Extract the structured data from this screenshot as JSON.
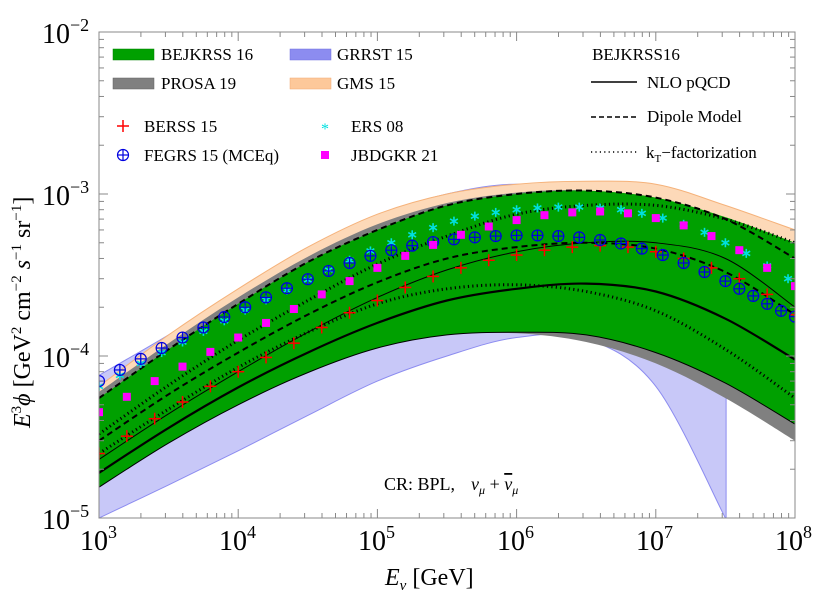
{
  "chart_data": {
    "type": "line",
    "title": "",
    "xlabel": "E_ν [GeV]",
    "ylabel": "E^3 φ [GeV^2 cm^-2 s^-1 sr^-1]",
    "xscale": "log",
    "yscale": "log",
    "xlim": [
      1000,
      100000000
    ],
    "ylim": [
      1e-05,
      0.01
    ],
    "x_ticks": [
      {
        "base": "10",
        "exp": "3"
      },
      {
        "base": "10",
        "exp": "4"
      },
      {
        "base": "10",
        "exp": "5"
      },
      {
        "base": "10",
        "exp": "6"
      },
      {
        "base": "10",
        "exp": "7"
      },
      {
        "base": "10",
        "exp": "8"
      }
    ],
    "y_ticks": [
      {
        "base": "10",
        "exp": "−5"
      },
      {
        "base": "10",
        "exp": "−4"
      },
      {
        "base": "10",
        "exp": "−3"
      },
      {
        "base": "10",
        "exp": "−2"
      }
    ],
    "annotation": {
      "text": "CR: BPL,",
      "formula": "ν_μ + ν̄_μ"
    },
    "legend": {
      "bands": [
        {
          "label": "BEJKRSS 16",
          "color": "#00a000"
        },
        {
          "label": "GRRST 15",
          "color": "#8c8cf0"
        },
        {
          "label": "PROSA 19",
          "color": "#808080"
        },
        {
          "label": "GMS 15",
          "color": "#fdc89a"
        }
      ],
      "markers": [
        {
          "label": "BERSS 15",
          "symbol": "+",
          "color": "#ff0000"
        },
        {
          "label": "ERS 08",
          "symbol": "*",
          "color": "#00ffff"
        },
        {
          "label": "FEGRS 15 (MCEq)",
          "symbol": "⊕",
          "color": "#0000e0"
        },
        {
          "label": "JBDGKR 21",
          "symbol": "■",
          "color": "#ff00ff"
        }
      ],
      "lines_title": "BEJKRSS16",
      "lines": [
        {
          "label": "NLO pQCD",
          "style": "solid"
        },
        {
          "label": "Dipole Model",
          "style": "dashed"
        },
        {
          "label": "k_T−factorization",
          "style": "dotted",
          "main": "k",
          "sub": "T",
          "rest": "−factorization"
        }
      ]
    },
    "log10x": [
      3.0,
      3.5,
      4.0,
      4.5,
      5.0,
      5.5,
      6.0,
      6.5,
      7.0,
      7.5,
      8.0
    ],
    "series": [
      {
        "name": "GRRST 15 band",
        "kind": "band",
        "color": "#c8c8f8",
        "stroke": "#8c8cf0",
        "upper": [
          7.6e-05,
          0.000135,
          0.00025,
          0.00045,
          0.00073,
          0.001,
          0.00115,
          0.001,
          null,
          null,
          null
        ],
        "lower": [
          1e-05,
          1.6e-05,
          2.6e-05,
          4.3e-05,
          7e-05,
          0.0001,
          0.00013,
          0.000128,
          6.5e-05,
          1e-05,
          null
        ]
      },
      {
        "name": "GMS 15 band",
        "kind": "band",
        "color": "#fdd9b8",
        "stroke": "#f5b27a",
        "upper": [
          6.5e-05,
          0.000135,
          0.00026,
          0.00047,
          0.00075,
          0.001,
          0.00115,
          0.0012,
          0.00115,
          0.00085,
          0.0006
        ],
        "lower": [
          3e-05,
          6e-05,
          0.00011,
          0.00019,
          0.0003,
          0.0004,
          0.00045,
          0.00044,
          0.00036,
          0.00024,
          0.00014
        ]
      },
      {
        "name": "PROSA 19 band",
        "kind": "band",
        "color": "#808080",
        "upper": [
          6e-05,
          0.00012,
          0.00023,
          0.00041,
          0.00065,
          0.00088,
          0.00102,
          0.00105,
          0.0009,
          0.00065,
          0.0004
        ],
        "lower": [
          1.55e-05,
          2.9e-05,
          5e-05,
          7.9e-05,
          0.000112,
          0.000135,
          0.000138,
          0.000122,
          9e-05,
          5.5e-05,
          3e-05
        ]
      },
      {
        "name": "BEJKRSS 16 band",
        "kind": "band",
        "color": "#00a000",
        "upper": [
          5.5e-05,
          0.00011,
          0.00021,
          0.00038,
          0.0006,
          0.00085,
          0.001,
          0.00105,
          0.00095,
          0.00072,
          0.0005
        ],
        "lower": [
          1.55e-05,
          2.9e-05,
          5e-05,
          7.9e-05,
          0.000112,
          0.000135,
          0.00014,
          0.000135,
          0.000105,
          6.8e-05,
          3.8e-05
        ]
      },
      {
        "name": "NLO pQCD central",
        "kind": "line",
        "style": "solid",
        "width": 2.2,
        "values": [
          1.9e-05,
          3.6e-05,
          6.4e-05,
          0.000105,
          0.00016,
          0.00022,
          0.00026,
          0.00028,
          0.00025,
          0.00017,
          9.5e-05
        ]
      },
      {
        "name": "NLO pQCD upper",
        "kind": "line",
        "style": "solid",
        "width": 1,
        "values": [
          2.3e-05,
          4.4e-05,
          8e-05,
          0.00014,
          0.00023,
          0.00034,
          0.00044,
          0.0005,
          0.0005,
          0.0004,
          0.0002
        ]
      },
      {
        "name": "NLO pQCD lower",
        "kind": "line",
        "style": "solid",
        "width": 1,
        "values": [
          1.55e-05,
          2.9e-05,
          5e-05,
          7.9e-05,
          0.000112,
          0.000135,
          0.00014,
          0.000135,
          0.000105,
          6.8e-05,
          3.8e-05
        ]
      },
      {
        "name": "Dipole upper",
        "kind": "line",
        "style": "dashed",
        "width": 2,
        "values": [
          5.5e-05,
          0.00011,
          0.00021,
          0.00038,
          0.0006,
          0.00085,
          0.001,
          0.00105,
          0.00095,
          0.0007,
          0.0004
        ]
      },
      {
        "name": "Dipole lower",
        "kind": "line",
        "style": "dashed",
        "width": 2,
        "values": [
          3e-05,
          5.8e-05,
          0.000105,
          0.00018,
          0.000285,
          0.0004,
          0.00047,
          0.0005,
          0.00046,
          0.00033,
          0.00018
        ]
      },
      {
        "name": "kT upper",
        "kind": "line",
        "style": "dotted",
        "width": 3,
        "values": [
          3.3e-05,
          6.6e-05,
          0.000125,
          0.00022,
          0.00037,
          0.00055,
          0.00075,
          0.00085,
          0.00085,
          0.0007,
          0.0005
        ]
      },
      {
        "name": "kT lower",
        "kind": "line",
        "style": "dotted",
        "width": 3,
        "values": [
          2.5e-05,
          4.7e-05,
          8.5e-05,
          0.00014,
          0.00021,
          0.00026,
          0.000275,
          0.00025,
          0.00019,
          0.00011,
          5.5e-05
        ]
      },
      {
        "name": "BERSS 15",
        "kind": "points",
        "symbol": "plus",
        "color": "#ff0000",
        "x": [
          3.0,
          3.2,
          3.4,
          3.6,
          3.8,
          4.0,
          4.2,
          4.4,
          4.6,
          4.8,
          5.0,
          5.2,
          5.4,
          5.6,
          5.8,
          6.0,
          6.2,
          6.4,
          6.6,
          6.8,
          7.0,
          7.2,
          7.4,
          7.6,
          7.8,
          8.0
        ],
        "values": [
          2.5e-05,
          3.2e-05,
          4.1e-05,
          5.2e-05,
          6.5e-05,
          8e-05,
          9.8e-05,
          0.00012,
          0.00015,
          0.000185,
          0.00022,
          0.000265,
          0.00031,
          0.00035,
          0.00039,
          0.00042,
          0.00045,
          0.00047,
          0.00048,
          0.00047,
          0.00044,
          0.0004,
          0.00035,
          0.0003,
          0.00024,
          0.00018
        ]
      },
      {
        "name": "ERS 08",
        "kind": "points",
        "symbol": "star",
        "color": "#00e0e0",
        "x": [
          3.0,
          3.15,
          3.3,
          3.45,
          3.6,
          3.75,
          3.9,
          4.05,
          4.2,
          4.35,
          4.5,
          4.65,
          4.8,
          4.95,
          5.1,
          5.25,
          5.4,
          5.55,
          5.7,
          5.85,
          6.0,
          6.15,
          6.3,
          6.45,
          6.6,
          6.75,
          6.9,
          7.05,
          7.2,
          7.35,
          7.5,
          7.65,
          7.8,
          7.95
        ],
        "values": [
          6.5e-05,
          7.6e-05,
          9e-05,
          0.000105,
          0.000122,
          0.000142,
          0.000165,
          0.000192,
          0.000222,
          0.000255,
          0.000295,
          0.00034,
          0.00039,
          0.000445,
          0.0005,
          0.00056,
          0.00062,
          0.00068,
          0.00073,
          0.00077,
          0.0008,
          0.00082,
          0.00083,
          0.00083,
          0.00082,
          0.0008,
          0.00076,
          0.00071,
          0.00065,
          0.00058,
          0.0005,
          0.00043,
          0.00036,
          0.0003
        ]
      },
      {
        "name": "FEGRS 15 (MCEq)",
        "kind": "points",
        "symbol": "circleplus",
        "color": "#0000e0",
        "x": [
          3.0,
          3.15,
          3.3,
          3.45,
          3.6,
          3.75,
          3.9,
          4.05,
          4.2,
          4.35,
          4.5,
          4.65,
          4.8,
          4.95,
          5.1,
          5.25,
          5.4,
          5.55,
          5.7,
          5.85,
          6.0,
          6.15,
          6.3,
          6.45,
          6.6,
          6.75,
          6.9,
          7.05,
          7.2,
          7.35,
          7.5,
          7.6,
          7.7,
          7.8,
          7.9,
          8.0
        ],
        "values": [
          7e-05,
          8.2e-05,
          9.6e-05,
          0.000112,
          0.00013,
          0.00015,
          0.000174,
          0.0002,
          0.00023,
          0.000262,
          0.000298,
          0.000335,
          0.000375,
          0.000415,
          0.00045,
          0.00048,
          0.000505,
          0.000525,
          0.00054,
          0.00055,
          0.000555,
          0.000555,
          0.00055,
          0.00054,
          0.00052,
          0.000495,
          0.00046,
          0.00042,
          0.000375,
          0.00033,
          0.00029,
          0.00026,
          0.000235,
          0.00021,
          0.00019,
          0.000175
        ]
      },
      {
        "name": "JBDGKR 21",
        "kind": "points",
        "symbol": "square",
        "color": "#ff00ff",
        "x": [
          3.0,
          3.2,
          3.4,
          3.6,
          3.8,
          4.0,
          4.2,
          4.4,
          4.6,
          4.8,
          5.0,
          5.2,
          5.4,
          5.6,
          5.8,
          6.0,
          6.2,
          6.4,
          6.6,
          6.8,
          7.0,
          7.2,
          7.4,
          7.6,
          7.8,
          8.0
        ],
        "values": [
          4.5e-05,
          5.6e-05,
          7e-05,
          8.6e-05,
          0.000106,
          0.00013,
          0.00016,
          0.000195,
          0.00024,
          0.00029,
          0.00035,
          0.000415,
          0.000485,
          0.00056,
          0.00063,
          0.00069,
          0.00074,
          0.00077,
          0.00078,
          0.00076,
          0.00071,
          0.00064,
          0.00055,
          0.00045,
          0.00035,
          0.00027
        ]
      }
    ]
  }
}
